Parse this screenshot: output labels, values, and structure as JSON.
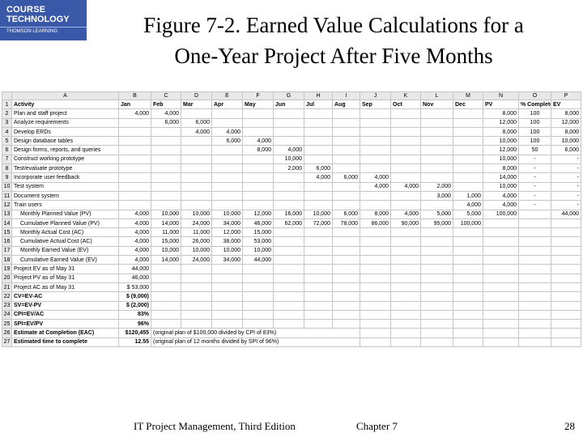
{
  "logo": {
    "line1": "COURSE",
    "line2": "TECHNOLOGY",
    "line3": "THOMSON LEARNING"
  },
  "title": {
    "line1": "Figure 7-2. Earned Value Calculations for a",
    "line2": "One-Year Project After Five Months"
  },
  "sheet": {
    "col_letters": [
      "",
      "A",
      "B",
      "C",
      "D",
      "E",
      "F",
      "G",
      "H",
      "I",
      "J",
      "K",
      "L",
      "M",
      "N",
      "O",
      "P"
    ],
    "rows": [
      [
        "1",
        "Activity",
        "Jan",
        "Feb",
        "Mar",
        "Apr",
        "May",
        "Jun",
        "Jul",
        "Aug",
        "Sep",
        "Oct",
        "Nov",
        "Dec",
        "PV",
        "% Complete",
        "EV"
      ],
      [
        "2",
        "Plan and staff project",
        "4,000",
        "4,000",
        "",
        "",
        "",
        "",
        "",
        "",
        "",
        "",
        "",
        "",
        "8,000",
        "100",
        "8,000"
      ],
      [
        "3",
        "Analyze requirements",
        "",
        "6,000",
        "6,000",
        "",
        "",
        "",
        "",
        "",
        "",
        "",
        "",
        "",
        "12,000",
        "100",
        "12,000"
      ],
      [
        "4",
        "Develop ERDs",
        "",
        "",
        "4,000",
        "4,000",
        "",
        "",
        "",
        "",
        "",
        "",
        "",
        "",
        "8,000",
        "100",
        "8,000"
      ],
      [
        "5",
        "Design database tables",
        "",
        "",
        "",
        "6,000",
        "4,000",
        "",
        "",
        "",
        "",
        "",
        "",
        "",
        "10,000",
        "100",
        "10,000"
      ],
      [
        "6",
        "Design forms, reports, and queries",
        "",
        "",
        "",
        "",
        "8,000",
        "4,000",
        "",
        "",
        "",
        "",
        "",
        "",
        "12,000",
        "50",
        "6,000"
      ],
      [
        "7",
        "Construct working prototype",
        "",
        "",
        "",
        "",
        "",
        "10,000",
        "",
        "",
        "",
        "",
        "",
        "",
        "10,000",
        "-",
        "-"
      ],
      [
        "8",
        "Test/evaluate prototype",
        "",
        "",
        "",
        "",
        "",
        "2,000",
        "6,000",
        "",
        "",
        "",
        "",
        "",
        "8,000",
        "-",
        "-"
      ],
      [
        "9",
        "Incorporate user feedback",
        "",
        "",
        "",
        "",
        "",
        "",
        "4,000",
        "6,000",
        "4,000",
        "",
        "",
        "",
        "14,000",
        "-",
        "-"
      ],
      [
        "10",
        "Test system",
        "",
        "",
        "",
        "",
        "",
        "",
        "",
        "",
        "4,000",
        "4,000",
        "2,000",
        "",
        "10,000",
        "-",
        "-"
      ],
      [
        "11",
        "Document system",
        "",
        "",
        "",
        "",
        "",
        "",
        "",
        "",
        "",
        "",
        "3,000",
        "1,000",
        "4,000",
        "-",
        "-"
      ],
      [
        "12",
        "Train users",
        "",
        "",
        "",
        "",
        "",
        "",
        "",
        "",
        "",
        "",
        "",
        "4,000",
        "4,000",
        "-",
        "-"
      ],
      [
        "13",
        "Monthly Planned Value (PV)",
        "4,000",
        "10,000",
        "10,000",
        "10,000",
        "12,000",
        "16,000",
        "10,000",
        "6,000",
        "8,000",
        "4,000",
        "5,000",
        "5,000",
        "100,000",
        "",
        "44,000"
      ],
      [
        "14",
        "Cumulative Planned Value (PV)",
        "4,000",
        "14,000",
        "24,000",
        "34,000",
        "46,000",
        "62,000",
        "72,000",
        "78,000",
        "86,000",
        "90,000",
        "95,000",
        "100,000",
        "",
        "",
        ""
      ],
      [
        "15",
        "Monthly Actual Cost (AC)",
        "4,000",
        "11,000",
        "11,000",
        "12,000",
        "15,000",
        "",
        "",
        "",
        "",
        "",
        "",
        "",
        "",
        "",
        ""
      ],
      [
        "16",
        "Cumulative Actual Cost (AC)",
        "4,000",
        "15,000",
        "26,000",
        "38,000",
        "53,000",
        "",
        "",
        "",
        "",
        "",
        "",
        "",
        "",
        "",
        ""
      ],
      [
        "17",
        "Monthly Earned Value (EV)",
        "4,000",
        "10,000",
        "10,000",
        "10,000",
        "10,000",
        "",
        "",
        "",
        "",
        "",
        "",
        "",
        "",
        "",
        ""
      ],
      [
        "18",
        "Cumulative Earned Value (EV)",
        "4,000",
        "14,000",
        "24,000",
        "34,000",
        "44,000",
        "",
        "",
        "",
        "",
        "",
        "",
        "",
        "",
        "",
        ""
      ],
      [
        "19",
        "Project EV as of May 31",
        "44,000",
        "",
        "",
        "",
        "",
        "",
        "",
        "",
        "",
        "",
        "",
        "",
        "",
        "",
        ""
      ],
      [
        "20",
        "Project PV as of May 31",
        "46,000",
        "",
        "",
        "",
        "",
        "",
        "",
        "",
        "",
        "",
        "",
        "",
        "",
        "",
        ""
      ],
      [
        "21",
        "Project AC as of May 31",
        "$   53,000",
        "",
        "",
        "",
        "",
        "",
        "",
        "",
        "",
        "",
        "",
        "",
        "",
        "",
        ""
      ],
      [
        "22",
        "CV=EV-AC",
        "$   (9,000)",
        "",
        "",
        "",
        "",
        "",
        "",
        "",
        "",
        "",
        "",
        "",
        "",
        "",
        ""
      ],
      [
        "23",
        "SV=EV-PV",
        "$   (2,000)",
        "",
        "",
        "",
        "",
        "",
        "",
        "",
        "",
        "",
        "",
        "",
        "",
        "",
        ""
      ],
      [
        "24",
        "CPI=EV/AC",
        "83%",
        "",
        "",
        "",
        "",
        "",
        "",
        "",
        "",
        "",
        "",
        "",
        "",
        "",
        ""
      ],
      [
        "25",
        "SPI=EV/PV",
        "96%",
        "",
        "",
        "",
        "",
        "",
        "",
        "",
        "",
        "",
        "",
        "",
        "",
        "",
        ""
      ],
      [
        "26",
        "Estimate at Completion (EAC)",
        "$120,455",
        "(original plan of $100,000 divided by CPI of 83%)",
        "",
        "",
        "",
        "",
        "",
        "",
        "",
        "",
        "",
        "",
        "",
        "",
        ""
      ],
      [
        "27",
        "Estimated time to complete",
        "12.55",
        "(original plan of 12 months divided by SPI of 96%)",
        "",
        "",
        "",
        "",
        "",
        "",
        "",
        "",
        "",
        "",
        "",
        "",
        ""
      ]
    ]
  },
  "footer": {
    "book": "IT Project Management, Third Edition",
    "chapter": "Chapter 7",
    "page": "28"
  }
}
